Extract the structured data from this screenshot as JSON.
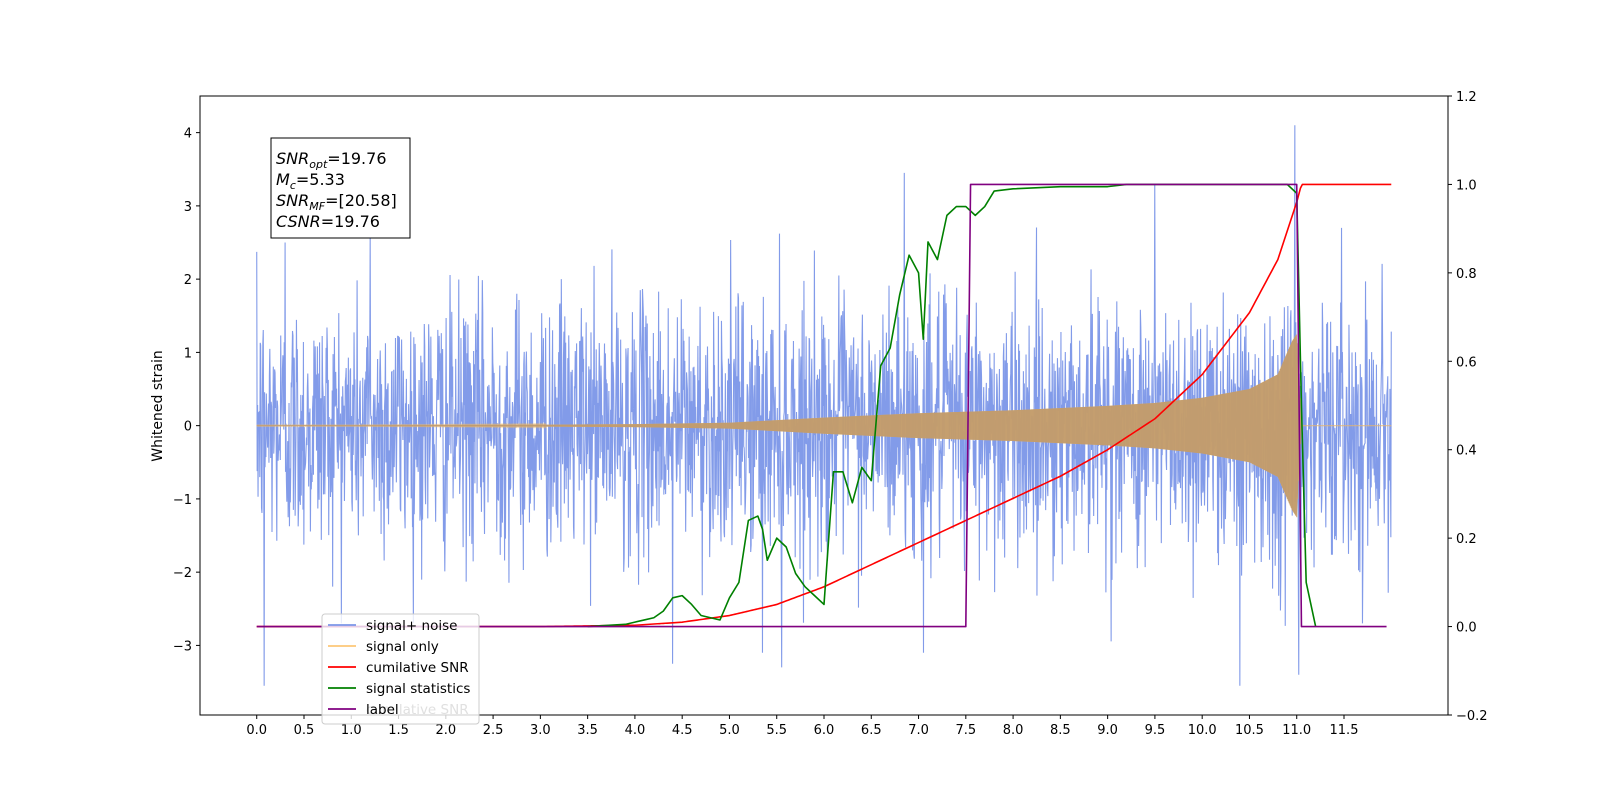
{
  "chart_data": {
    "type": "line",
    "title": "",
    "xlabel": "",
    "ylabel": "Whitened strain",
    "xlim": [
      -0.6,
      12.6
    ],
    "ylim": [
      -3.95,
      4.5
    ],
    "y2lim": [
      -0.2,
      1.2
    ],
    "x_ticks": [
      0.0,
      0.5,
      1.0,
      1.5,
      2.0,
      2.5,
      3.0,
      3.5,
      4.0,
      4.5,
      5.0,
      5.5,
      6.0,
      6.5,
      7.0,
      7.5,
      8.0,
      8.5,
      9.0,
      9.5,
      10.0,
      10.5,
      11.0,
      11.5
    ],
    "x_tick_labels": [
      "0.0",
      "0.5",
      "1.0",
      "1.5",
      "2.0",
      "2.5",
      "3.0",
      "3.5",
      "4.0",
      "4.5",
      "5.0",
      "5.5",
      "6.0",
      "6.5",
      "7.0",
      "7.5",
      "8.0",
      "8.5",
      "9.0",
      "9.5",
      "10.0",
      "10.5",
      "11.0",
      "11.5"
    ],
    "y_ticks": [
      -3,
      -2,
      -1,
      0,
      1,
      2,
      3,
      4
    ],
    "y_tick_labels": [
      "−3",
      "−2",
      "−1",
      "0",
      "1",
      "2",
      "3",
      "4"
    ],
    "y2_ticks": [
      -0.2,
      0.0,
      0.2,
      0.4,
      0.6,
      0.8,
      1.0,
      1.2
    ],
    "y2_tick_labels": [
      "−0.2",
      "0.0",
      "0.2",
      "0.4",
      "0.6",
      "0.8",
      "1.0",
      "1.2"
    ],
    "grid": false,
    "legend_position": "bottom-left",
    "annotation": {
      "lines": [
        {
          "var": "SNR",
          "sub": "opt",
          "value": "=19.76"
        },
        {
          "var": "M",
          "sub": "c",
          "value": "=5.33"
        },
        {
          "var": "SNR",
          "sub": "MF",
          "value": "=[20.58]"
        },
        {
          "var": "CSNR",
          "sub": "",
          "value": "=19.76"
        }
      ]
    },
    "series": [
      {
        "name": "signal+ noise",
        "axis": "left",
        "color": "#7b96e8",
        "noise_sigma": 0.95,
        "x_range": [
          0.0,
          12.0
        ],
        "extremes": [
          [
            0.08,
            -3.55
          ],
          [
            0.3,
            2.5
          ],
          [
            1.2,
            2.6
          ],
          [
            4.4,
            -3.25
          ],
          [
            5.35,
            -3.1
          ],
          [
            5.55,
            -3.3
          ],
          [
            6.85,
            3.45
          ],
          [
            7.05,
            -3.1
          ],
          [
            9.5,
            3.3
          ],
          [
            10.4,
            -3.55
          ],
          [
            10.98,
            4.1
          ],
          [
            11.02,
            -3.4
          ]
        ]
      },
      {
        "name": "signal only",
        "axis": "left",
        "color": "#e7b46a",
        "envelope_x": [
          0.0,
          1.0,
          2.0,
          3.0,
          4.0,
          5.0,
          6.0,
          7.0,
          8.0,
          9.0,
          9.5,
          10.0,
          10.5,
          10.8,
          10.95,
          11.0,
          11.05,
          12.0
        ],
        "envelope_y": [
          0.005,
          0.005,
          0.008,
          0.012,
          0.02,
          0.04,
          0.11,
          0.17,
          0.21,
          0.27,
          0.31,
          0.38,
          0.5,
          0.7,
          1.15,
          1.25,
          0.0,
          0.0
        ]
      },
      {
        "name": "cumilative SNR",
        "axis": "right",
        "color": "#ff0000",
        "x": [
          0.0,
          3.0,
          4.0,
          4.5,
          5.0,
          5.5,
          6.0,
          6.5,
          7.0,
          7.5,
          8.0,
          8.5,
          9.0,
          9.5,
          10.0,
          10.5,
          10.8,
          11.0,
          11.05,
          12.0
        ],
        "y": [
          0.0,
          0.0,
          0.003,
          0.01,
          0.025,
          0.05,
          0.09,
          0.14,
          0.19,
          0.24,
          0.29,
          0.34,
          0.4,
          0.47,
          0.57,
          0.71,
          0.83,
          0.96,
          1.0,
          1.0
        ]
      },
      {
        "name": "signal statistics",
        "axis": "right",
        "color": "#008000",
        "x": [
          3.5,
          3.9,
          4.0,
          4.1,
          4.2,
          4.3,
          4.4,
          4.5,
          4.6,
          4.7,
          4.8,
          4.9,
          5.0,
          5.1,
          5.2,
          5.3,
          5.35,
          5.4,
          5.5,
          5.6,
          5.7,
          5.8,
          5.9,
          6.0,
          6.1,
          6.2,
          6.3,
          6.4,
          6.5,
          6.6,
          6.7,
          6.8,
          6.9,
          7.0,
          7.05,
          7.1,
          7.2,
          7.3,
          7.4,
          7.5,
          7.6,
          7.7,
          7.8,
          8.0,
          8.5,
          9.0,
          9.2,
          9.5,
          10.0,
          10.5,
          10.9,
          11.0,
          11.05,
          11.1,
          11.2
        ],
        "y": [
          0.0,
          0.005,
          0.01,
          0.015,
          0.02,
          0.035,
          0.065,
          0.07,
          0.05,
          0.025,
          0.02,
          0.015,
          0.065,
          0.1,
          0.24,
          0.25,
          0.22,
          0.15,
          0.2,
          0.18,
          0.12,
          0.09,
          0.07,
          0.05,
          0.35,
          0.35,
          0.28,
          0.36,
          0.33,
          0.59,
          0.63,
          0.75,
          0.84,
          0.8,
          0.65,
          0.87,
          0.83,
          0.93,
          0.95,
          0.95,
          0.93,
          0.95,
          0.985,
          0.99,
          0.995,
          0.995,
          1.0,
          1.0,
          1.0,
          1.0,
          1.0,
          0.98,
          0.5,
          0.1,
          0.0
        ]
      },
      {
        "name": "label",
        "axis": "right",
        "color": "#800080",
        "x": [
          0.0,
          7.5,
          7.55,
          11.0,
          11.05,
          11.95
        ],
        "y": [
          0.0,
          0.0,
          1.0,
          1.0,
          0.0,
          0.0
        ]
      }
    ],
    "legend_hidden_text": "cumilative SNR"
  }
}
